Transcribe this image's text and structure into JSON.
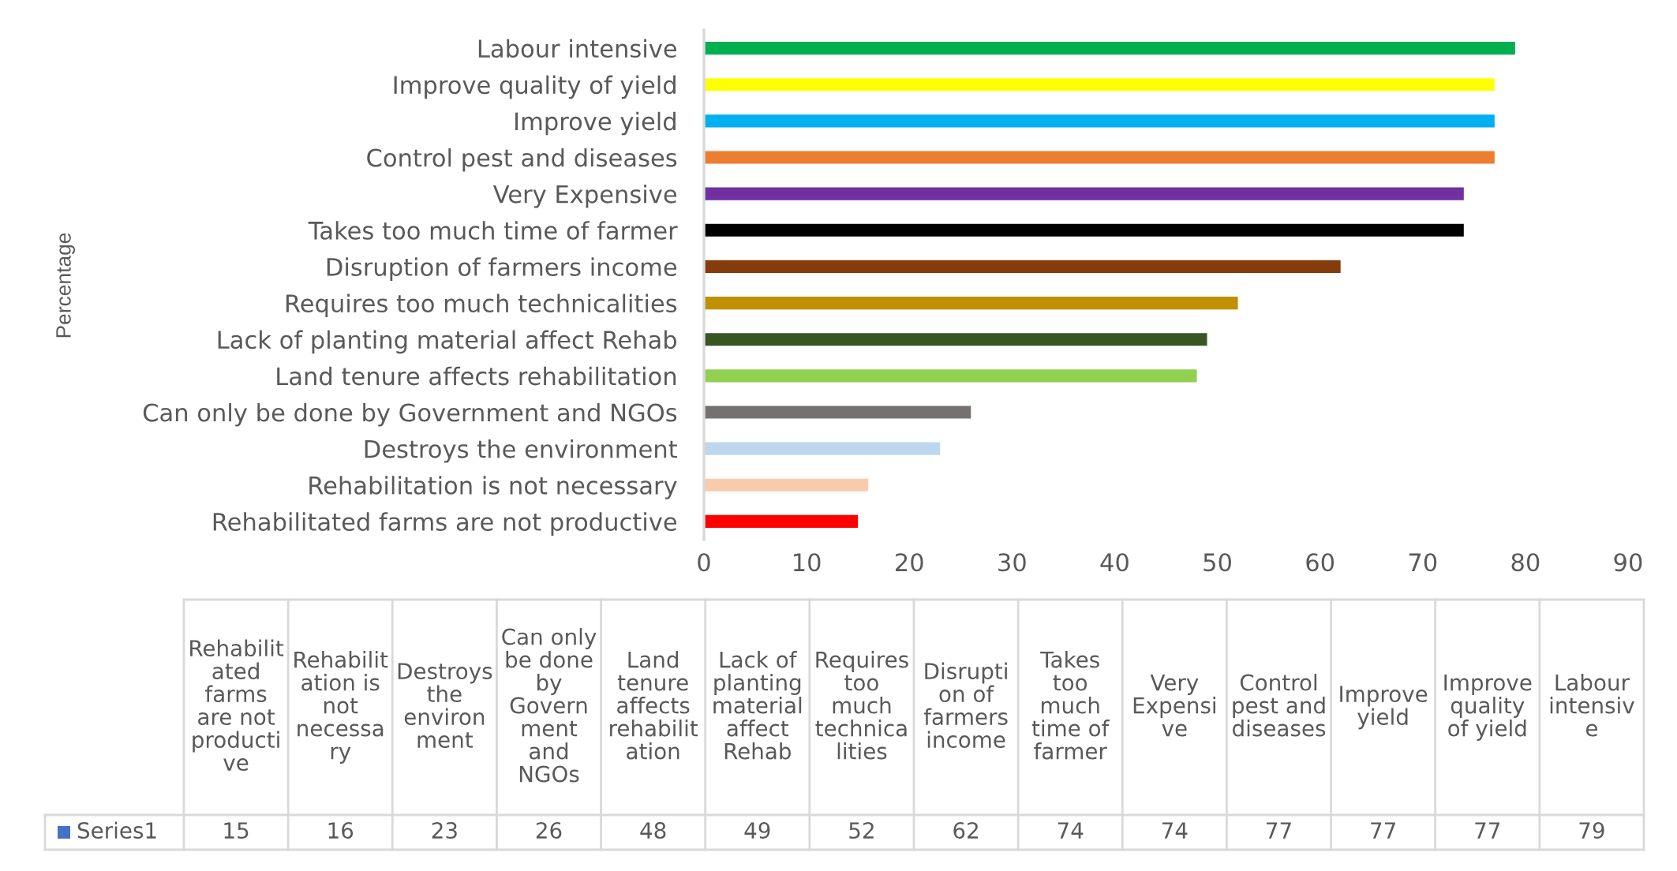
{
  "chart_data": [
    {
      "type": "bar",
      "orientation": "horizontal",
      "ylabel": "Percentage",
      "categories": [
        "Labour intensive",
        "Improve quality of yield",
        "Improve yield",
        "Control pest and diseases",
        "Very Expensive",
        "Takes too much time of farmer",
        "Disruption of farmers income",
        "Requires too much technicalities",
        "Lack of planting material affect Rehab",
        "Land tenure affects rehabilitation",
        "Can only be done by Government and NGOs",
        "Destroys the environment",
        "Rehabilitation is not necessary",
        "Rehabilitated farms are not productive"
      ],
      "colors": [
        "#00b050",
        "#ffff00",
        "#00b0f0",
        "#ed7d31",
        "#7030a0",
        "#000000",
        "#843c0c",
        "#bf9000",
        "#375623",
        "#92d050",
        "#767171",
        "#bdd7ee",
        "#f8cbad",
        "#ff0000"
      ],
      "values": [
        79,
        77,
        77,
        77,
        74,
        74,
        62,
        52,
        49,
        48,
        26,
        23,
        16,
        15
      ],
      "xlim": [
        0,
        90
      ],
      "xticks": [
        0,
        10,
        20,
        30,
        40,
        50,
        60,
        70,
        80,
        90
      ]
    },
    {
      "type": "other",
      "categories": [
        "Rehabilitated farms are not productive",
        "Rehabilitation is not necessary",
        "Destroys the environment",
        "Can only be done by Government and NGOs",
        "Land tenure affects rehabilitation",
        "Lack of planting material affect Rehab",
        "Requires too much technicalities",
        "Disruption of farmers income",
        "Takes too much time of farmer",
        "Very Expensive",
        "Control pest and diseases",
        "Improve yield",
        "Improve quality of yield",
        "Labour intensive"
      ],
      "series": [
        {
          "name": "Series1",
          "color": "#4472c4",
          "values": [
            15,
            16,
            23,
            26,
            48,
            49,
            52,
            62,
            74,
            74,
            77,
            77,
            77,
            79
          ]
        }
      ],
      "data_labels": true,
      "legend": "left"
    }
  ]
}
